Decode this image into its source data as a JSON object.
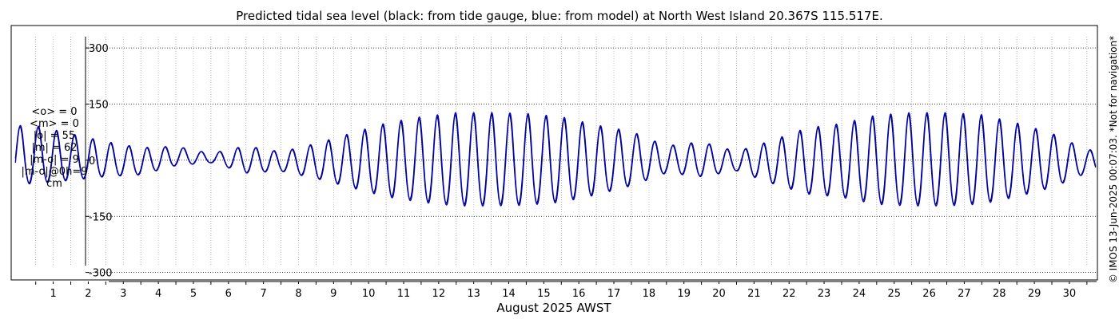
{
  "chart_data": {
    "type": "line",
    "title": "Predicted tidal sea level (black: from tide gauge, blue: from model) at North West Island 20.367S 115.517E.",
    "xlabel": "August 2025 AWST",
    "ylabel": "",
    "y_unit": "cm",
    "ylim": [
      -320,
      360
    ],
    "yticks": [
      300,
      150,
      0,
      -150,
      -300
    ],
    "ytick_labels": [
      "300",
      "150",
      "0",
      "-150",
      "-300"
    ],
    "xlim": [
      0.3,
      31.3
    ],
    "xticks": [
      1,
      2,
      3,
      4,
      5,
      6,
      7,
      8,
      9,
      10,
      11,
      12,
      13,
      14,
      15,
      16,
      17,
      18,
      19,
      20,
      21,
      22,
      23,
      24,
      25,
      26,
      27,
      28,
      29,
      30
    ],
    "xtick_labels": [
      "1",
      "2",
      "3",
      "4",
      "5",
      "6",
      "7",
      "8",
      "9",
      "10",
      "11",
      "12",
      "13",
      "14",
      "15",
      "16",
      "17",
      "18",
      "19",
      "20",
      "21",
      "22",
      "23",
      "24",
      "25",
      "26",
      "27",
      "28",
      "29",
      "30"
    ],
    "grid": true,
    "series": [
      {
        "name": "tide gauge",
        "color": "#000000",
        "x_start": 0.42,
        "x_end": 31.25,
        "period_days": 0.5175,
        "phase_days": 0.55,
        "amp_days": [
          1,
          3,
          5,
          6,
          7,
          8,
          9,
          10,
          11,
          12,
          13,
          14,
          15,
          16,
          17,
          18,
          19,
          20,
          21,
          22,
          23,
          24,
          25,
          26,
          27,
          28,
          29,
          30,
          31
        ],
        "amp_cm": [
          75,
          45,
          25,
          12,
          35,
          25,
          45,
          70,
          95,
          110,
          120,
          120,
          118,
          110,
          90,
          70,
          35,
          45,
          25,
          55,
          85,
          95,
          115,
          120,
          120,
          115,
          95,
          70,
          30
        ],
        "mean_days": [
          1,
          4,
          5,
          8,
          11,
          14,
          17,
          18,
          20,
          22,
          26,
          30,
          31
        ],
        "mean_cm": [
          10,
          -5,
          10,
          -5,
          -5,
          -5,
          -5,
          0,
          0,
          -8,
          -5,
          -5,
          -5
        ]
      },
      {
        "name": "model",
        "color": "#0000cc",
        "x_start": 0.42,
        "x_end": 31.25,
        "amp_scale": 1.04,
        "phase_offset_days": 0.012
      }
    ]
  },
  "stats": {
    "mean_obs": "<o> = 0",
    "mean_model": "<m> = 0",
    "abs_obs": "|o| = 55",
    "abs_model": "|m| = 62",
    "abs_diff": "|m-o| = 9",
    "abs_diff_0h": "|m-o|@0h=9",
    "unit": "cm"
  },
  "copyright": "© IMOS 13-Jun-2025 00:07:03. *Not for navigation*"
}
